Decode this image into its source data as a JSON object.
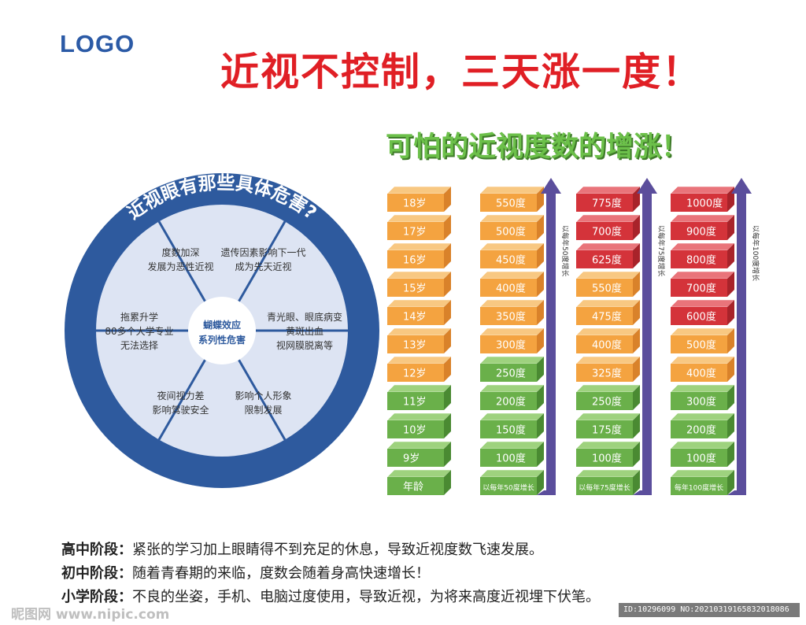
{
  "logo": "LOGO",
  "title": "近视不控制，三天涨一度！",
  "subtitle": "可怕的近视度数的增涨！",
  "wheel": {
    "ring_title": "近视眼有那些具体危害?",
    "center_line1": "蝴蝶效应",
    "center_line2": "系列性危害",
    "segments": [
      {
        "lines": [
          "度数加深",
          "发展为恶性近视"
        ]
      },
      {
        "lines": [
          "遗传因素影响下一代",
          "成为先天近视"
        ]
      },
      {
        "lines": [
          "青光眼、眼底病变",
          "黄斑出血",
          "视网膜脱离等"
        ]
      },
      {
        "lines": [
          "影响个人形象",
          "限制发展"
        ]
      },
      {
        "lines": [
          "夜间视力差",
          "影响驾驶安全"
        ]
      },
      {
        "lines": [
          "拖累升学",
          "80多个大学专业",
          "无法选择"
        ]
      }
    ]
  },
  "columns": [
    {
      "name": "ages",
      "blocks": [
        {
          "label": "18岁",
          "color": "orange"
        },
        {
          "label": "17岁",
          "color": "orange"
        },
        {
          "label": "16岁",
          "color": "orange"
        },
        {
          "label": "15岁",
          "color": "orange"
        },
        {
          "label": "14岁",
          "color": "orange"
        },
        {
          "label": "13岁",
          "color": "orange"
        },
        {
          "label": "12岁",
          "color": "orange"
        },
        {
          "label": "11岁",
          "color": "green"
        },
        {
          "label": "10岁",
          "color": "green"
        },
        {
          "label": "9岁",
          "color": "green"
        },
        {
          "label": "年龄",
          "color": "green"
        }
      ]
    },
    {
      "name": "rate-50",
      "arrow_text": "以每年50度增长",
      "blocks": [
        {
          "label": "550度",
          "color": "orange"
        },
        {
          "label": "500度",
          "color": "orange"
        },
        {
          "label": "450度",
          "color": "orange"
        },
        {
          "label": "400度",
          "color": "orange"
        },
        {
          "label": "350度",
          "color": "orange"
        },
        {
          "label": "300度",
          "color": "orange"
        },
        {
          "label": "250度",
          "color": "green"
        },
        {
          "label": "200度",
          "color": "green"
        },
        {
          "label": "150度",
          "color": "green"
        },
        {
          "label": "100度",
          "color": "green"
        },
        {
          "label": "以每年50度增长",
          "color": "green",
          "small": true
        }
      ]
    },
    {
      "name": "rate-75",
      "arrow_text": "以每年75度增长",
      "blocks": [
        {
          "label": "775度",
          "color": "red"
        },
        {
          "label": "700度",
          "color": "red"
        },
        {
          "label": "625度",
          "color": "red"
        },
        {
          "label": "550度",
          "color": "orange"
        },
        {
          "label": "475度",
          "color": "orange"
        },
        {
          "label": "400度",
          "color": "orange"
        },
        {
          "label": "325度",
          "color": "orange"
        },
        {
          "label": "250度",
          "color": "green"
        },
        {
          "label": "175度",
          "color": "green"
        },
        {
          "label": "100度",
          "color": "green"
        },
        {
          "label": "以每年75度增长",
          "color": "green",
          "small": true
        }
      ]
    },
    {
      "name": "rate-100",
      "arrow_text": "以每年100度增长",
      "blocks": [
        {
          "label": "1000度",
          "color": "red"
        },
        {
          "label": "900度",
          "color": "red"
        },
        {
          "label": "800度",
          "color": "red"
        },
        {
          "label": "700度",
          "color": "red"
        },
        {
          "label": "600度",
          "color": "red"
        },
        {
          "label": "500度",
          "color": "orange"
        },
        {
          "label": "400度",
          "color": "orange"
        },
        {
          "label": "300度",
          "color": "green"
        },
        {
          "label": "200度",
          "color": "green"
        },
        {
          "label": "100度",
          "color": "green"
        },
        {
          "label": "每年100度增长",
          "color": "green",
          "small": true
        }
      ]
    }
  ],
  "colors": {
    "orange": {
      "front": "#f4a340",
      "top": "#f8c882",
      "side": "#d9822a"
    },
    "red": {
      "front": "#d4333a",
      "top": "#e9747a",
      "side": "#a8232a"
    },
    "green": {
      "front": "#6ab04a",
      "top": "#9ed27e",
      "side": "#4a8a32"
    },
    "arrow": "#5b4e9c",
    "wheel_ring": "#2e5a9e",
    "wheel_fill": "#dde4f3"
  },
  "stages": [
    {
      "label": "高中阶段：",
      "text": "紧张的学习加上眼睛得不到充足的休息，导致近视度数飞速发展。"
    },
    {
      "label": "初中阶段：",
      "text": "随着青春期的来临，度数会随着身高快速增长！"
    },
    {
      "label": "小学阶段：",
      "text": "不良的坐姿，手机、电脑过度使用，导致近视，为将来高度近视埋下伏笔。"
    }
  ],
  "footer": {
    "watermark": "昵图网 www.nipic.com",
    "id_text": "ID:10296099 NO:20210319165832018086"
  }
}
